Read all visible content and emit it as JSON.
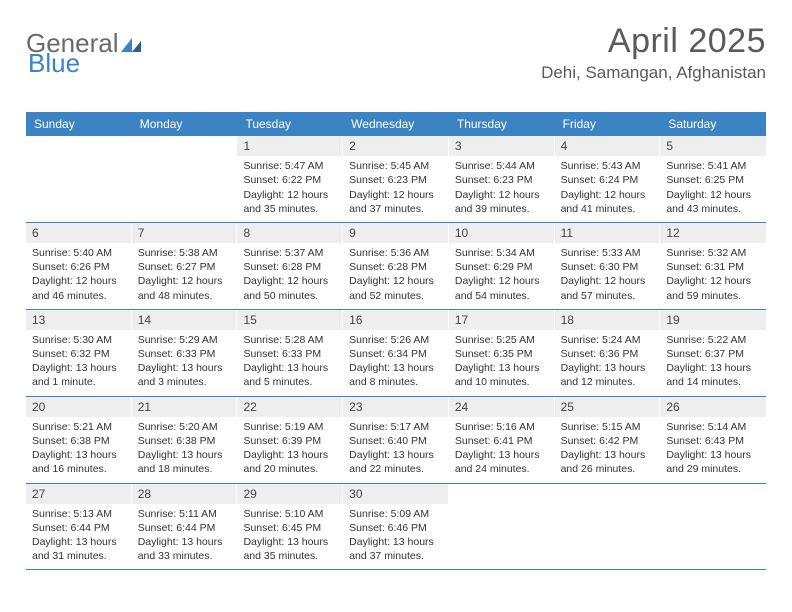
{
  "logo": {
    "general": "General",
    "blue": "Blue"
  },
  "title": "April 2025",
  "location": "Dehi, Samangan, Afghanistan",
  "colors": {
    "header_bg": "#3c83c4",
    "header_text": "#ffffff",
    "daynum_bg": "#eeeeee",
    "border": "#3c83c4",
    "page_bg": "#ffffff",
    "text": "#333333"
  },
  "days_of_week": [
    "Sunday",
    "Monday",
    "Tuesday",
    "Wednesday",
    "Thursday",
    "Friday",
    "Saturday"
  ],
  "weeks": [
    [
      {
        "n": "",
        "empty": true
      },
      {
        "n": "",
        "empty": true
      },
      {
        "n": "1",
        "sunrise": "Sunrise: 5:47 AM",
        "sunset": "Sunset: 6:22 PM",
        "daylight": "Daylight: 12 hours and 35 minutes."
      },
      {
        "n": "2",
        "sunrise": "Sunrise: 5:45 AM",
        "sunset": "Sunset: 6:23 PM",
        "daylight": "Daylight: 12 hours and 37 minutes."
      },
      {
        "n": "3",
        "sunrise": "Sunrise: 5:44 AM",
        "sunset": "Sunset: 6:23 PM",
        "daylight": "Daylight: 12 hours and 39 minutes."
      },
      {
        "n": "4",
        "sunrise": "Sunrise: 5:43 AM",
        "sunset": "Sunset: 6:24 PM",
        "daylight": "Daylight: 12 hours and 41 minutes."
      },
      {
        "n": "5",
        "sunrise": "Sunrise: 5:41 AM",
        "sunset": "Sunset: 6:25 PM",
        "daylight": "Daylight: 12 hours and 43 minutes."
      }
    ],
    [
      {
        "n": "6",
        "sunrise": "Sunrise: 5:40 AM",
        "sunset": "Sunset: 6:26 PM",
        "daylight": "Daylight: 12 hours and 46 minutes."
      },
      {
        "n": "7",
        "sunrise": "Sunrise: 5:38 AM",
        "sunset": "Sunset: 6:27 PM",
        "daylight": "Daylight: 12 hours and 48 minutes."
      },
      {
        "n": "8",
        "sunrise": "Sunrise: 5:37 AM",
        "sunset": "Sunset: 6:28 PM",
        "daylight": "Daylight: 12 hours and 50 minutes."
      },
      {
        "n": "9",
        "sunrise": "Sunrise: 5:36 AM",
        "sunset": "Sunset: 6:28 PM",
        "daylight": "Daylight: 12 hours and 52 minutes."
      },
      {
        "n": "10",
        "sunrise": "Sunrise: 5:34 AM",
        "sunset": "Sunset: 6:29 PM",
        "daylight": "Daylight: 12 hours and 54 minutes."
      },
      {
        "n": "11",
        "sunrise": "Sunrise: 5:33 AM",
        "sunset": "Sunset: 6:30 PM",
        "daylight": "Daylight: 12 hours and 57 minutes."
      },
      {
        "n": "12",
        "sunrise": "Sunrise: 5:32 AM",
        "sunset": "Sunset: 6:31 PM",
        "daylight": "Daylight: 12 hours and 59 minutes."
      }
    ],
    [
      {
        "n": "13",
        "sunrise": "Sunrise: 5:30 AM",
        "sunset": "Sunset: 6:32 PM",
        "daylight": "Daylight: 13 hours and 1 minute."
      },
      {
        "n": "14",
        "sunrise": "Sunrise: 5:29 AM",
        "sunset": "Sunset: 6:33 PM",
        "daylight": "Daylight: 13 hours and 3 minutes."
      },
      {
        "n": "15",
        "sunrise": "Sunrise: 5:28 AM",
        "sunset": "Sunset: 6:33 PM",
        "daylight": "Daylight: 13 hours and 5 minutes."
      },
      {
        "n": "16",
        "sunrise": "Sunrise: 5:26 AM",
        "sunset": "Sunset: 6:34 PM",
        "daylight": "Daylight: 13 hours and 8 minutes."
      },
      {
        "n": "17",
        "sunrise": "Sunrise: 5:25 AM",
        "sunset": "Sunset: 6:35 PM",
        "daylight": "Daylight: 13 hours and 10 minutes."
      },
      {
        "n": "18",
        "sunrise": "Sunrise: 5:24 AM",
        "sunset": "Sunset: 6:36 PM",
        "daylight": "Daylight: 13 hours and 12 minutes."
      },
      {
        "n": "19",
        "sunrise": "Sunrise: 5:22 AM",
        "sunset": "Sunset: 6:37 PM",
        "daylight": "Daylight: 13 hours and 14 minutes."
      }
    ],
    [
      {
        "n": "20",
        "sunrise": "Sunrise: 5:21 AM",
        "sunset": "Sunset: 6:38 PM",
        "daylight": "Daylight: 13 hours and 16 minutes."
      },
      {
        "n": "21",
        "sunrise": "Sunrise: 5:20 AM",
        "sunset": "Sunset: 6:38 PM",
        "daylight": "Daylight: 13 hours and 18 minutes."
      },
      {
        "n": "22",
        "sunrise": "Sunrise: 5:19 AM",
        "sunset": "Sunset: 6:39 PM",
        "daylight": "Daylight: 13 hours and 20 minutes."
      },
      {
        "n": "23",
        "sunrise": "Sunrise: 5:17 AM",
        "sunset": "Sunset: 6:40 PM",
        "daylight": "Daylight: 13 hours and 22 minutes."
      },
      {
        "n": "24",
        "sunrise": "Sunrise: 5:16 AM",
        "sunset": "Sunset: 6:41 PM",
        "daylight": "Daylight: 13 hours and 24 minutes."
      },
      {
        "n": "25",
        "sunrise": "Sunrise: 5:15 AM",
        "sunset": "Sunset: 6:42 PM",
        "daylight": "Daylight: 13 hours and 26 minutes."
      },
      {
        "n": "26",
        "sunrise": "Sunrise: 5:14 AM",
        "sunset": "Sunset: 6:43 PM",
        "daylight": "Daylight: 13 hours and 29 minutes."
      }
    ],
    [
      {
        "n": "27",
        "sunrise": "Sunrise: 5:13 AM",
        "sunset": "Sunset: 6:44 PM",
        "daylight": "Daylight: 13 hours and 31 minutes."
      },
      {
        "n": "28",
        "sunrise": "Sunrise: 5:11 AM",
        "sunset": "Sunset: 6:44 PM",
        "daylight": "Daylight: 13 hours and 33 minutes."
      },
      {
        "n": "29",
        "sunrise": "Sunrise: 5:10 AM",
        "sunset": "Sunset: 6:45 PM",
        "daylight": "Daylight: 13 hours and 35 minutes."
      },
      {
        "n": "30",
        "sunrise": "Sunrise: 5:09 AM",
        "sunset": "Sunset: 6:46 PM",
        "daylight": "Daylight: 13 hours and 37 minutes."
      },
      {
        "n": "",
        "empty": true
      },
      {
        "n": "",
        "empty": true
      },
      {
        "n": "",
        "empty": true
      }
    ]
  ]
}
